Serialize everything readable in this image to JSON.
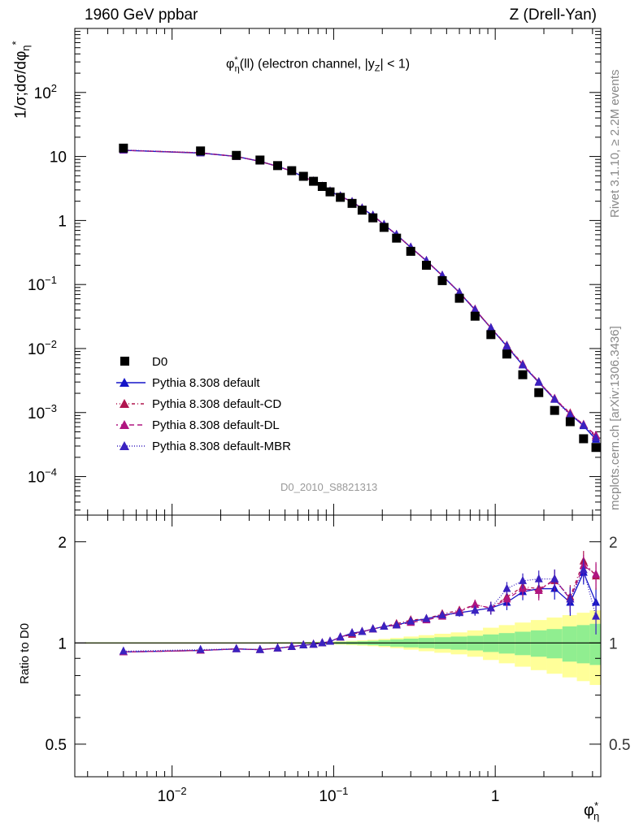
{
  "header": {
    "left": "1960 GeV ppbar",
    "right": "Z (Drell-Yan)"
  },
  "side_labels": {
    "rivet": "Rivet 3.1.10, ≥ 2.2M events",
    "mcplots": "mcplots.cern.ch [arXiv:1306.3436]"
  },
  "plot": {
    "title_main": "φ",
    "title_sup": "*",
    "title_sub": "η",
    "title_rest": "(ll) (electron channel, |y",
    "title_rest_sub": "Z",
    "title_end": "| < 1)",
    "analysis_id": "D0_2010_S8821313",
    "ylabel_main": "1/σ;dσ/dφ",
    "ylabel_sub": "η",
    "ylabel_sup": "*",
    "ratio_ylabel": "Ratio to D0",
    "xlabel_main": "φ",
    "xlabel_sup": "*",
    "xlabel_sub": "η"
  },
  "legend": [
    {
      "label": "D0",
      "marker": "square",
      "color": "#000000",
      "dash": ""
    },
    {
      "label": "Pythia 8.308 default",
      "marker": "triangle",
      "color": "#1515c8",
      "dash": ""
    },
    {
      "label": "Pythia 8.308 default-CD",
      "marker": "triangle",
      "color": "#b0154f",
      "dash": "4,3,1,3"
    },
    {
      "label": "Pythia 8.308 default-DL",
      "marker": "triangle",
      "color": "#b01580",
      "dash": "6,4"
    },
    {
      "label": "Pythia 8.308 default-MBR",
      "marker": "triangle",
      "color": "#3a22c0",
      "dash": "1,2"
    }
  ],
  "colors": {
    "band_inner": "#90ee90",
    "band_outer": "#ffff99",
    "reference_line": "#000000"
  },
  "chart_data": {
    "type": "scatter",
    "xscale": "log",
    "yscale": "log",
    "xlim": [
      0.0025,
      4.5
    ],
    "ylim_main": [
      2.5e-05,
      1000
    ],
    "ylim_ratio": [
      0.4,
      2.4
    ],
    "x_ticks": [
      "10^-2",
      "10^-1",
      "1"
    ],
    "y_ticks_main": [
      "10^-4",
      "10^-3",
      "10^-2",
      "10^-1",
      "1",
      "10",
      "10^2"
    ],
    "y_ticks_ratio": [
      "0.5",
      "1",
      "2"
    ],
    "x": [
      0.005,
      0.015,
      0.025,
      0.035,
      0.045,
      0.055,
      0.065,
      0.075,
      0.085,
      0.095,
      0.11,
      0.13,
      0.15,
      0.175,
      0.205,
      0.245,
      0.3,
      0.375,
      0.47,
      0.6,
      0.75,
      0.94,
      1.18,
      1.48,
      1.86,
      2.33,
      2.91,
      3.52,
      4.2
    ],
    "series": [
      {
        "name": "D0",
        "values": [
          13.5,
          12.2,
          10.4,
          8.8,
          7.2,
          6.0,
          4.9,
          4.1,
          3.4,
          2.8,
          2.3,
          1.85,
          1.45,
          1.1,
          0.78,
          0.53,
          0.33,
          0.2,
          0.115,
          0.061,
          0.032,
          0.0165,
          0.0082,
          0.0039,
          0.00205,
          0.00108,
          0.00072,
          0.00039,
          0.000285
        ]
      },
      {
        "name": "Pythia 8.308 default",
        "values": [
          12.5,
          11.3,
          10.0,
          8.4,
          7.0,
          5.9,
          4.8,
          4.1,
          3.4,
          2.85,
          2.4,
          1.95,
          1.55,
          1.2,
          0.86,
          0.6,
          0.38,
          0.235,
          0.138,
          0.075,
          0.04,
          0.021,
          0.0108,
          0.0055,
          0.00295,
          0.0016,
          0.00095,
          0.00062,
          0.00038
        ]
      },
      {
        "name": "Pythia 8.308 default-CD",
        "values": [
          12.5,
          11.4,
          10.0,
          8.4,
          7.0,
          5.9,
          4.8,
          4.1,
          3.4,
          2.85,
          2.4,
          1.95,
          1.55,
          1.2,
          0.86,
          0.6,
          0.38,
          0.235,
          0.138,
          0.075,
          0.041,
          0.021,
          0.0112,
          0.0057,
          0.003,
          0.00165,
          0.00098,
          0.00064,
          0.00042
        ]
      },
      {
        "name": "Pythia 8.308 default-DL",
        "values": [
          12.5,
          11.4,
          10.0,
          8.4,
          7.0,
          5.9,
          4.8,
          4.1,
          3.4,
          2.85,
          2.4,
          1.95,
          1.55,
          1.2,
          0.86,
          0.6,
          0.38,
          0.235,
          0.138,
          0.075,
          0.041,
          0.021,
          0.011,
          0.0056,
          0.003,
          0.00165,
          0.00095,
          0.00065,
          0.00044
        ]
      },
      {
        "name": "Pythia 8.308 default-MBR",
        "values": [
          12.6,
          11.4,
          10.0,
          8.4,
          7.0,
          5.9,
          4.8,
          4.1,
          3.4,
          2.85,
          2.4,
          1.95,
          1.55,
          1.2,
          0.86,
          0.6,
          0.38,
          0.235,
          0.138,
          0.075,
          0.04,
          0.021,
          0.011,
          0.0055,
          0.003,
          0.0016,
          0.00092,
          0.00063,
          0.0004
        ]
      }
    ],
    "ratio_series": [
      {
        "name": "Pythia 8.308 default",
        "values": [
          0.94,
          0.95,
          0.96,
          0.955,
          0.965,
          0.975,
          0.985,
          0.99,
          1.0,
          1.01,
          1.04,
          1.07,
          1.08,
          1.1,
          1.12,
          1.13,
          1.16,
          1.18,
          1.21,
          1.23,
          1.25,
          1.27,
          1.32,
          1.42,
          1.45,
          1.45,
          1.32,
          1.62,
          1.32
        ]
      },
      {
        "name": "Pythia 8.308 default-CD",
        "values": [
          0.94,
          0.95,
          0.96,
          0.955,
          0.965,
          0.975,
          0.985,
          0.99,
          1.0,
          1.01,
          1.04,
          1.06,
          1.08,
          1.1,
          1.12,
          1.14,
          1.17,
          1.18,
          1.22,
          1.25,
          1.3,
          1.27,
          1.37,
          1.47,
          1.45,
          1.53,
          1.37,
          1.75,
          1.58
        ]
      },
      {
        "name": "Pythia 8.308 default-DL",
        "values": [
          0.94,
          0.95,
          0.96,
          0.955,
          0.965,
          0.975,
          0.985,
          0.99,
          1.0,
          1.01,
          1.04,
          1.07,
          1.08,
          1.1,
          1.12,
          1.13,
          1.15,
          1.17,
          1.2,
          1.24,
          1.3,
          1.27,
          1.35,
          1.45,
          1.43,
          1.55,
          1.35,
          1.7,
          1.6
        ]
      },
      {
        "name": "Pythia 8.308 default-MBR",
        "values": [
          0.945,
          0.955,
          0.96,
          0.955,
          0.965,
          0.975,
          0.985,
          0.99,
          1.0,
          1.01,
          1.04,
          1.07,
          1.08,
          1.1,
          1.12,
          1.13,
          1.16,
          1.18,
          1.21,
          1.23,
          1.25,
          1.27,
          1.45,
          1.53,
          1.55,
          1.55,
          1.35,
          1.65,
          1.2
        ]
      }
    ],
    "uncertainty_inner": [
      0.003,
      0.003,
      0.003,
      0.003,
      0.004,
      0.004,
      0.005,
      0.005,
      0.006,
      0.006,
      0.008,
      0.01,
      0.012,
      0.015,
      0.02,
      0.025,
      0.03,
      0.035,
      0.04,
      0.045,
      0.05,
      0.06,
      0.07,
      0.08,
      0.09,
      0.1,
      0.12,
      0.13,
      0.14
    ],
    "uncertainty_outer": [
      0.005,
      0.005,
      0.005,
      0.005,
      0.006,
      0.006,
      0.007,
      0.008,
      0.009,
      0.01,
      0.012,
      0.015,
      0.018,
      0.022,
      0.028,
      0.035,
      0.045,
      0.055,
      0.065,
      0.075,
      0.09,
      0.11,
      0.13,
      0.15,
      0.17,
      0.19,
      0.21,
      0.23,
      0.25
    ]
  }
}
